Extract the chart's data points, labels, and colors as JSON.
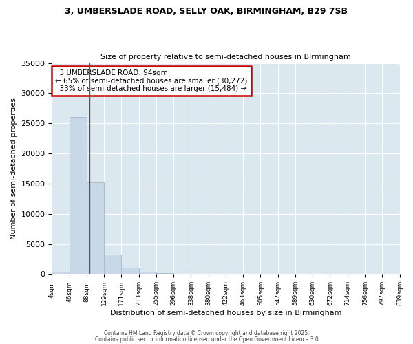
{
  "title_line1": "3, UMBERSLADE ROAD, SELLY OAK, BIRMINGHAM, B29 7SB",
  "title_line2": "Size of property relative to semi-detached houses in Birmingham",
  "xlabel": "Distribution of semi-detached houses by size in Birmingham",
  "ylabel": "Number of semi-detached properties",
  "bin_edges": [
    4,
    46,
    88,
    129,
    171,
    213,
    255,
    296,
    338,
    380,
    422,
    463,
    505,
    547,
    589,
    630,
    672,
    714,
    756,
    797,
    839
  ],
  "bar_heights": [
    350,
    26000,
    15200,
    3200,
    1100,
    400,
    150,
    30,
    10,
    5,
    3,
    2,
    1,
    1,
    0,
    0,
    0,
    0,
    0,
    0
  ],
  "bar_color": "#c8d8e8",
  "bar_edgecolor": "#aabcce",
  "property_size": 94,
  "property_label": "3 UMBERSLADE ROAD: 94sqm",
  "pct_smaller": 65,
  "n_smaller": 30272,
  "pct_larger": 33,
  "n_larger": 15484,
  "vline_color": "#555555",
  "annotation_box_edgecolor": "#cc0000",
  "ylim": [
    0,
    35000
  ],
  "yticks": [
    0,
    5000,
    10000,
    15000,
    20000,
    25000,
    30000,
    35000
  ],
  "footer_line1": "Contains HM Land Registry data © Crown copyright and database right 2025.",
  "footer_line2": "Contains public sector information licensed under the Open Government Licence 3.0",
  "fig_bg_color": "#ffffff",
  "plot_bg_color": "#dce8f0"
}
